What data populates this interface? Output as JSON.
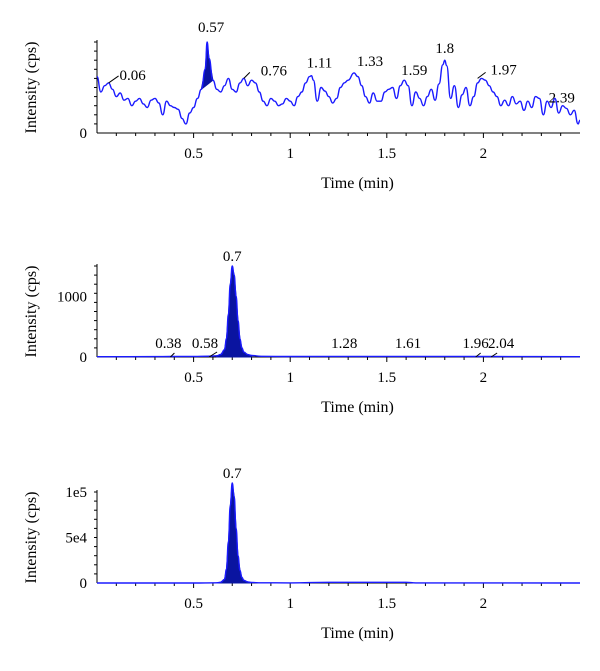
{
  "colors": {
    "trace": "#1a1aff",
    "fill": "#0a14a0",
    "axis": "#000000"
  },
  "chart_data": [
    {
      "type": "line",
      "xlabel": "Time (min)",
      "ylabel": "Intensity (cps)",
      "xlim": [
        0.0,
        2.5
      ],
      "ylim": [
        0,
        100
      ],
      "x_ticks": [
        "0.5",
        "1",
        "1.5",
        "2"
      ],
      "y_ticks": [
        "0"
      ],
      "grid": false,
      "filled_peak": 0.57,
      "peaks": [
        {
          "x": 0.06,
          "y": 55,
          "label": "0.06"
        },
        {
          "x": 0.57,
          "y": 100,
          "label": "0.57"
        },
        {
          "x": 0.76,
          "y": 60,
          "label": "0.76"
        },
        {
          "x": 1.11,
          "y": 63,
          "label": "1.11"
        },
        {
          "x": 1.33,
          "y": 66,
          "label": "1.33"
        },
        {
          "x": 1.59,
          "y": 58,
          "label": "1.59"
        },
        {
          "x": 1.8,
          "y": 80,
          "label": "1.8"
        },
        {
          "x": 1.97,
          "y": 60,
          "label": "1.97"
        },
        {
          "x": 2.39,
          "y": 27,
          "label": "2.39"
        }
      ],
      "series": [
        {
          "x": [
            0.0,
            0.02,
            0.04,
            0.06,
            0.08,
            0.1,
            0.12,
            0.14,
            0.16,
            0.18,
            0.2,
            0.22,
            0.24,
            0.26,
            0.28,
            0.3,
            0.32,
            0.34,
            0.36,
            0.38,
            0.4,
            0.42,
            0.44,
            0.46,
            0.48,
            0.5,
            0.52,
            0.54,
            0.56,
            0.57,
            0.58,
            0.6,
            0.62,
            0.64,
            0.66,
            0.68,
            0.7,
            0.72,
            0.74,
            0.76,
            0.78,
            0.8,
            0.82,
            0.84,
            0.86,
            0.88,
            0.9,
            0.92,
            0.94,
            0.96,
            0.98,
            1.0,
            1.02,
            1.04,
            1.06,
            1.08,
            1.1,
            1.11,
            1.12,
            1.14,
            1.16,
            1.18,
            1.2,
            1.22,
            1.24,
            1.26,
            1.28,
            1.3,
            1.33,
            1.35,
            1.37,
            1.39,
            1.41,
            1.43,
            1.45,
            1.47,
            1.49,
            1.51,
            1.53,
            1.55,
            1.57,
            1.59,
            1.61,
            1.63,
            1.65,
            1.67,
            1.69,
            1.71,
            1.73,
            1.75,
            1.77,
            1.79,
            1.8,
            1.81,
            1.83,
            1.85,
            1.87,
            1.89,
            1.91,
            1.93,
            1.95,
            1.97,
            1.99,
            2.01,
            2.03,
            2.05,
            2.07,
            2.09,
            2.11,
            2.13,
            2.15,
            2.17,
            2.19,
            2.21,
            2.23,
            2.25,
            2.27,
            2.29,
            2.31,
            2.33,
            2.35,
            2.37,
            2.39,
            2.41,
            2.43,
            2.45,
            2.47,
            2.49,
            2.5
          ],
          "y": [
            62,
            45,
            52,
            55,
            48,
            40,
            44,
            36,
            38,
            30,
            35,
            38,
            32,
            28,
            36,
            38,
            33,
            20,
            35,
            30,
            28,
            26,
            16,
            10,
            22,
            28,
            38,
            48,
            70,
            100,
            82,
            58,
            48,
            45,
            52,
            60,
            48,
            45,
            55,
            60,
            52,
            58,
            55,
            45,
            35,
            30,
            38,
            35,
            30,
            32,
            38,
            35,
            30,
            40,
            45,
            55,
            62,
            63,
            58,
            35,
            50,
            46,
            40,
            33,
            38,
            50,
            55,
            58,
            66,
            62,
            52,
            40,
            33,
            44,
            35,
            35,
            45,
            48,
            50,
            38,
            52,
            58,
            52,
            30,
            45,
            38,
            30,
            40,
            48,
            36,
            54,
            75,
            80,
            74,
            38,
            52,
            28,
            42,
            50,
            30,
            40,
            55,
            60,
            58,
            52,
            45,
            40,
            30,
            36,
            30,
            40,
            32,
            35,
            25,
            35,
            28,
            40,
            38,
            20,
            35,
            28,
            38,
            22,
            30,
            27,
            20,
            25,
            10,
            14
          ]
        }
      ]
    },
    {
      "type": "line",
      "xlabel": "Time (min)",
      "ylabel": "Intensity (cps)",
      "xlim": [
        0.0,
        2.5
      ],
      "ylim": [
        0,
        1500
      ],
      "x_ticks": [
        "0.5",
        "1",
        "1.5",
        "2"
      ],
      "y_ticks": [
        "0",
        "1000"
      ],
      "grid": false,
      "filled_peak": 0.7,
      "peaks": [
        {
          "x": 0.38,
          "y": 0,
          "label": "0.38"
        },
        {
          "x": 0.58,
          "y": 0,
          "label": "0.58"
        },
        {
          "x": 0.7,
          "y": 1500,
          "label": "0.7"
        },
        {
          "x": 1.28,
          "y": 0,
          "label": "1.28"
        },
        {
          "x": 1.61,
          "y": 0,
          "label": "1.61"
        },
        {
          "x": 1.96,
          "y": 0,
          "label": "1.96"
        },
        {
          "x": 2.04,
          "y": 0,
          "label": "2.04"
        }
      ],
      "series": [
        {
          "x": [
            0.0,
            0.3,
            0.38,
            0.5,
            0.58,
            0.62,
            0.64,
            0.66,
            0.67,
            0.68,
            0.69,
            0.7,
            0.71,
            0.72,
            0.73,
            0.74,
            0.75,
            0.76,
            0.78,
            0.8,
            0.85,
            1.0,
            1.28,
            1.61,
            1.96,
            2.04,
            2.5
          ],
          "y": [
            5,
            6,
            8,
            10,
            14,
            20,
            40,
            120,
            300,
            700,
            1200,
            1500,
            1350,
            1000,
            600,
            300,
            150,
            80,
            40,
            25,
            12,
            8,
            10,
            10,
            9,
            8,
            5
          ]
        }
      ]
    },
    {
      "type": "line",
      "xlabel": "Time (min)",
      "ylabel": "Intensity (cps)",
      "xlim": [
        0.0,
        2.5
      ],
      "ylim": [
        0,
        100000
      ],
      "x_ticks": [
        "0.5",
        "1",
        "1.5",
        "2"
      ],
      "y_ticks": [
        "0",
        "5e4",
        "1e5"
      ],
      "grid": false,
      "filled_peak": 0.7,
      "peaks": [
        {
          "x": 0.7,
          "y": 110000,
          "label": "0.7"
        }
      ],
      "series": [
        {
          "x": [
            0.0,
            0.5,
            0.62,
            0.64,
            0.66,
            0.67,
            0.68,
            0.69,
            0.7,
            0.71,
            0.72,
            0.73,
            0.74,
            0.75,
            0.76,
            0.78,
            0.8,
            0.85,
            1.0,
            1.2,
            1.6,
            1.65,
            2.5
          ],
          "y": [
            0,
            0,
            200,
            800,
            4000,
            15000,
            45000,
            85000,
            110000,
            95000,
            60000,
            30000,
            14000,
            6000,
            3000,
            1200,
            600,
            250,
            100,
            800,
            800,
            80,
            0
          ]
        }
      ]
    }
  ]
}
